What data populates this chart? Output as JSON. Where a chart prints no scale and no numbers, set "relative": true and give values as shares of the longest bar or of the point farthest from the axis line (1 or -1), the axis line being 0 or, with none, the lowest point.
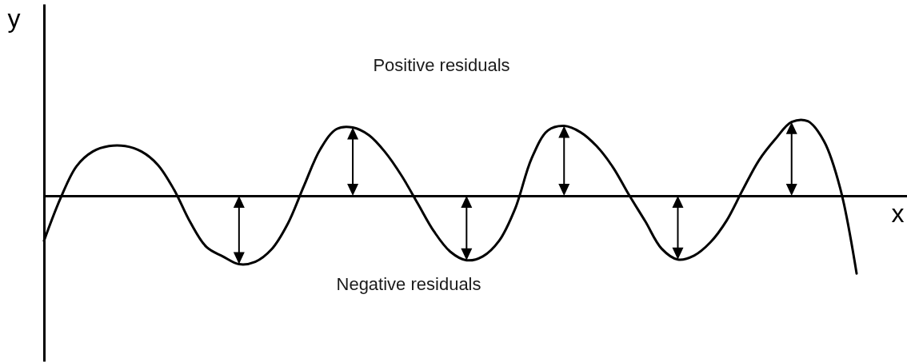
{
  "chart_data": {
    "type": "line",
    "relative": true,
    "xlabel": "x",
    "ylabel": "y",
    "tick_labels": false,
    "annotations": [
      "Positive residuals",
      "Negative residuals"
    ],
    "categories": [
      null,
      null,
      null,
      null,
      null,
      null,
      null,
      null,
      null,
      null,
      null,
      null,
      null,
      null,
      null,
      null,
      null,
      null,
      null,
      null,
      null,
      null,
      null,
      null,
      null,
      null,
      null,
      null,
      null,
      null,
      null,
      null,
      null,
      null,
      null,
      null,
      null,
      null,
      null,
      null,
      null,
      null,
      null,
      null,
      null,
      null,
      null,
      null,
      null,
      null,
      null
    ],
    "series": [
      {
        "color": "#000000",
        "values": [
          -0.58,
          -0.04,
          0.38,
          0.57,
          0.64,
          0.64,
          0.57,
          0.4,
          0.08,
          -0.34,
          -0.66,
          -0.78,
          -0.88,
          -0.85,
          -0.69,
          -0.36,
          0.13,
          0.6,
          0.86,
          0.88,
          0.78,
          0.56,
          0.26,
          -0.1,
          -0.46,
          -0.72,
          -0.83,
          -0.78,
          -0.58,
          -0.16,
          0.48,
          0.84,
          0.9,
          0.82,
          0.64,
          0.37,
          0.01,
          -0.33,
          -0.68,
          -0.82,
          -0.77,
          -0.6,
          -0.32,
          0.08,
          0.46,
          0.73,
          0.95,
          0.96,
          0.7,
          0.09,
          -1
        ]
      }
    ]
  }
}
